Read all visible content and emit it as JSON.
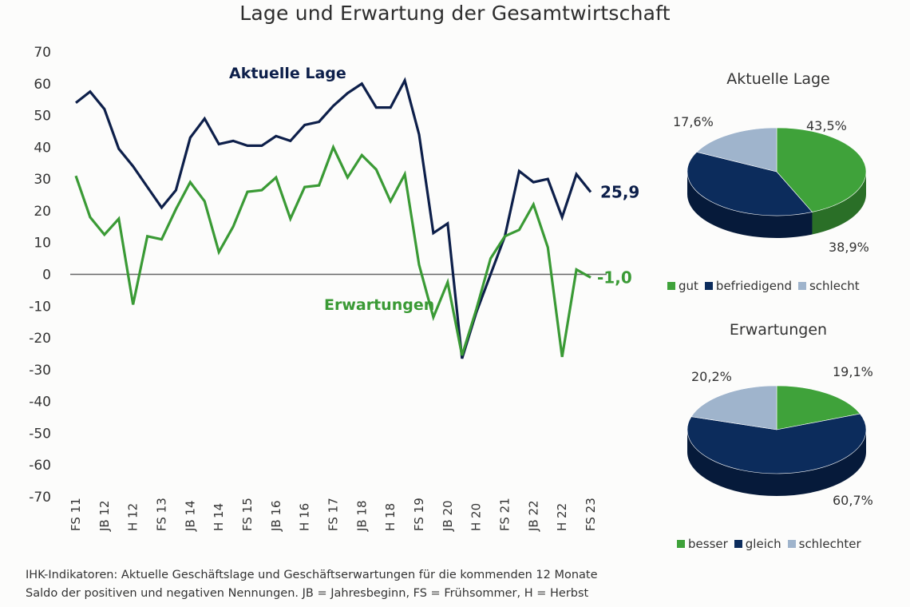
{
  "title": "Lage und Erwartung der Gesamtwirtschaft",
  "colors": {
    "aktuelle_lage": "#0d1f4a",
    "erwartungen": "#3a9a35",
    "zero_line": "#666666",
    "pie_green": "#3fa23a",
    "pie_navy": "#0c2c5c",
    "pie_light": "#9fb4cc"
  },
  "chart_data": [
    {
      "type": "line",
      "title": "Lage und Erwartung der Gesamtwirtschaft",
      "xlabel": "",
      "ylabel": "",
      "ylim": [
        -70,
        70
      ],
      "yticks": [
        70,
        60,
        50,
        40,
        30,
        20,
        10,
        0,
        -10,
        -20,
        -30,
        -40,
        -50,
        -60,
        -70
      ],
      "x_tick_labels": [
        "FS 11",
        "JB 12",
        "H 12",
        "FS 13",
        "JB 14",
        "H 14",
        "FS 15",
        "JB 16",
        "H 16",
        "FS 17",
        "JB 18",
        "H 18",
        "FS 19",
        "JB 20",
        "H 20",
        "FS 21",
        "JB 22",
        "H 22",
        "FS 23"
      ],
      "x": [
        "FS 11",
        "H 11",
        "JB 12",
        "FS 12",
        "H 12",
        "JB 13",
        "FS 13",
        "H 13",
        "JB 14",
        "FS 14",
        "H 14",
        "JB 15",
        "FS 15",
        "H 15",
        "JB 16",
        "FS 16",
        "H 16",
        "JB 17",
        "FS 17",
        "H 17",
        "JB 18",
        "FS 18",
        "H 18",
        "JB 19",
        "FS 19",
        "H 19",
        "JB 20",
        "FS 20",
        "H 20",
        "JB 21",
        "FS 21",
        "H 21",
        "JB 22",
        "FS 22",
        "H 22",
        "JB 23",
        "FS 23"
      ],
      "grid": false,
      "series": [
        {
          "name": "Aktuelle Lage",
          "label": "Aktuelle Lage",
          "last_value_label": "25,9",
          "values": [
            54,
            57.5,
            52,
            39.5,
            34,
            27.5,
            21,
            26.5,
            43,
            49,
            41,
            42,
            40.5,
            40.5,
            43.5,
            42,
            47,
            48,
            53,
            57,
            60,
            52.5,
            52.5,
            61,
            44,
            13,
            16,
            -26.5,
            -12,
            0,
            12,
            32.5,
            29,
            30,
            18,
            31.5,
            25.9
          ]
        },
        {
          "name": "Erwartungen",
          "label": "Erwartungen",
          "last_value_label": "-1,0",
          "values": [
            31,
            18,
            12.5,
            17.5,
            -9.5,
            12,
            11,
            20.5,
            29,
            23,
            7,
            15,
            26,
            26.5,
            30.5,
            17.5,
            27.5,
            28,
            40,
            30.5,
            37.5,
            33,
            23,
            31.5,
            3,
            -13.5,
            -2.5,
            -25.5,
            -11,
            5,
            12,
            14,
            22,
            8.5,
            -26,
            1.5,
            -1.0
          ]
        }
      ]
    },
    {
      "type": "pie",
      "title": "Aktuelle Lage",
      "slices": [
        {
          "label": "gut",
          "value": 43.5,
          "display": "43,5%"
        },
        {
          "label": "befriedigend",
          "value": 38.9,
          "display": "38,9%"
        },
        {
          "label": "schlecht",
          "value": 17.6,
          "display": "17,6%"
        }
      ],
      "legend": [
        "gut",
        "befriedigend",
        "schlecht"
      ],
      "legend_position": "bottom"
    },
    {
      "type": "pie",
      "title": "Erwartungen",
      "slices": [
        {
          "label": "besser",
          "value": 19.1,
          "display": "19,1%"
        },
        {
          "label": "gleich",
          "value": 60.7,
          "display": "60,7%"
        },
        {
          "label": "schlechter",
          "value": 20.2,
          "display": "20,2%"
        }
      ],
      "legend": [
        "besser",
        "gleich",
        "schlechter"
      ],
      "legend_position": "bottom"
    }
  ],
  "footnote": {
    "line1": "IHK-Indikatoren: Aktuelle Geschäftslage und Geschäftserwartungen für die kommenden 12 Monate",
    "line2": "Saldo der positiven und negativen Nennungen. JB = Jahresbeginn, FS = Frühsommer, H = Herbst"
  }
}
